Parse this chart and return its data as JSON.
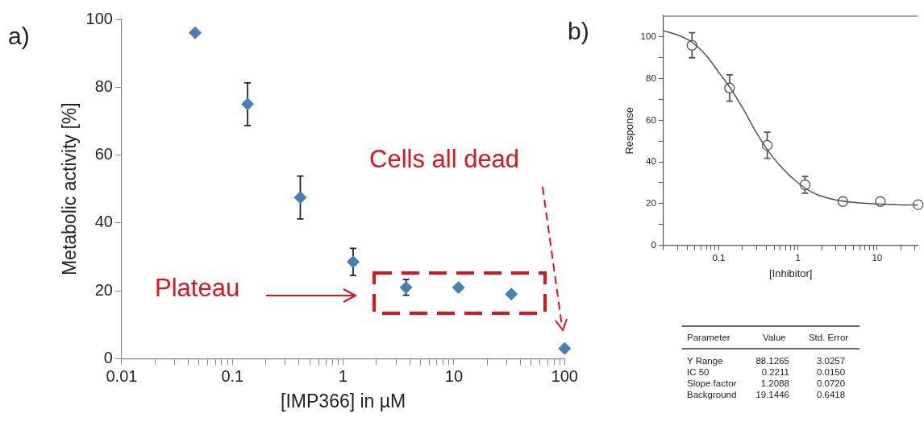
{
  "chart_data": [
    {
      "type": "scatter",
      "title": "a)",
      "xlabel": "[IMP366] in µM",
      "ylabel": "Metabolic activity [%]",
      "log": "x",
      "grid": false,
      "legend": false,
      "marker": "diamond",
      "color": "#4a7ebb",
      "x": [
        0.046,
        0.137,
        0.41,
        1.23,
        3.7,
        11,
        33,
        100
      ],
      "values": [
        96,
        75,
        47.5,
        28.5,
        21,
        21,
        19,
        3
      ],
      "errors": [
        null,
        6.3,
        6.3,
        4,
        2.3,
        null,
        null,
        null
      ],
      "xlim": [
        0.01,
        100
      ],
      "ylim": [
        0,
        100
      ],
      "xticks": [
        0.01,
        {
          "value": 0.02,
          "label": null
        },
        {
          "value": 0.03,
          "label": null
        },
        {
          "value": 0.04,
          "label": null
        },
        {
          "value": 0.05,
          "label": null
        },
        {
          "value": 0.06,
          "label": null
        },
        {
          "value": 0.07,
          "label": null
        },
        {
          "value": 0.08,
          "label": null
        },
        {
          "value": 0.09,
          "label": null
        },
        0.1,
        {
          "value": 0.2,
          "label": null
        },
        {
          "value": 0.3,
          "label": null
        },
        {
          "value": 0.4,
          "label": null
        },
        {
          "value": 0.5,
          "label": null
        },
        {
          "value": 0.6,
          "label": null
        },
        {
          "value": 0.7,
          "label": null
        },
        {
          "value": 0.8,
          "label": null
        },
        {
          "value": 0.9,
          "label": null
        },
        1,
        {
          "value": 2,
          "label": null
        },
        {
          "value": 3,
          "label": null
        },
        {
          "value": 4,
          "label": null
        },
        {
          "value": 5,
          "label": null
        },
        {
          "value": 6,
          "label": null
        },
        {
          "value": 7,
          "label": null
        },
        {
          "value": 8,
          "label": null
        },
        {
          "value": 9,
          "label": null
        },
        10,
        {
          "value": 20,
          "label": null
        },
        {
          "value": 30,
          "label": null
        },
        {
          "value": 40,
          "label": null
        },
        {
          "value": 50,
          "label": null
        },
        {
          "value": 60,
          "label": null
        },
        {
          "value": 70,
          "label": null
        },
        {
          "value": 80,
          "label": null
        },
        {
          "value": 90,
          "label": null
        },
        100
      ],
      "yticks": [
        0,
        20,
        40,
        60,
        80,
        100
      ],
      "annotations": [
        "Plateau",
        "Cells all dead"
      ]
    },
    {
      "type": "scatter",
      "title": "b)",
      "xlabel": "[Inhibitor]",
      "ylabel": "Response",
      "log": "x",
      "grid": false,
      "legend": false,
      "xlim": [
        0.02,
        33
      ],
      "ylim": [
        0,
        110
      ],
      "xticks": [
        {
          "value": 0.02,
          "label": null
        },
        {
          "value": 0.03,
          "label": null
        },
        {
          "value": 0.04,
          "label": null
        },
        {
          "value": 0.05,
          "label": null
        },
        {
          "value": 0.06,
          "label": null
        },
        {
          "value": 0.07,
          "label": null
        },
        {
          "value": 0.08,
          "label": null
        },
        {
          "value": 0.09,
          "label": null
        },
        0.1,
        {
          "value": 0.2,
          "label": null
        },
        {
          "value": 0.3,
          "label": null
        },
        {
          "value": 0.4,
          "label": null
        },
        {
          "value": 0.5,
          "label": null
        },
        {
          "value": 0.6,
          "label": null
        },
        {
          "value": 0.7,
          "label": null
        },
        {
          "value": 0.8,
          "label": null
        },
        {
          "value": 0.9,
          "label": null
        },
        1,
        {
          "value": 2,
          "label": null
        },
        {
          "value": 3,
          "label": null
        },
        {
          "value": 4,
          "label": null
        },
        {
          "value": 5,
          "label": null
        },
        {
          "value": 6,
          "label": null
        },
        {
          "value": 7,
          "label": null
        },
        {
          "value": 8,
          "label": null
        },
        {
          "value": 9,
          "label": null
        },
        10,
        {
          "value": 20,
          "label": null
        },
        {
          "value": 30,
          "label": null
        }
      ],
      "yticks": [
        0,
        {
          "value": 10,
          "label": null
        },
        20,
        {
          "value": 30,
          "label": null
        },
        40,
        {
          "value": 50,
          "label": null
        },
        60,
        {
          "value": 70,
          "label": null
        },
        80,
        {
          "value": 90,
          "label": null
        },
        100
      ],
      "series": [
        {
          "type": "line",
          "color": "#555555",
          "marker": "none",
          "x": [
            0.02,
            0.03,
            0.046,
            0.07,
            0.1,
            0.137,
            0.2,
            0.3,
            0.41,
            0.6,
            1,
            1.5,
            2,
            3,
            5,
            10,
            20,
            33
          ],
          "values": [
            103,
            101,
            97.5,
            91,
            83,
            76,
            66,
            54,
            46,
            38,
            30,
            25.5,
            23.5,
            21.8,
            20.6,
            19.8,
            19.4,
            19.3
          ]
        },
        {
          "type": "scatter",
          "color": "#555555",
          "marker": "circle",
          "x": [
            0.046,
            0.137,
            0.41,
            1.23,
            3.7,
            11,
            33
          ],
          "values": [
            96,
            75.5,
            48,
            29,
            21,
            21,
            19.5
          ],
          "errors": [
            6,
            6.3,
            6.3,
            4,
            null,
            null,
            null
          ]
        }
      ]
    },
    {
      "type": "other",
      "annotations": [
        "Parameter",
        "Value",
        "Std. Error",
        "Y Range",
        "88.1265",
        "3.0257",
        "IC 50",
        "0.2211",
        "0.0150",
        "Slope factor",
        "1.2088",
        "0.0720",
        "Background",
        "19.1446",
        "0.6418"
      ]
    }
  ]
}
